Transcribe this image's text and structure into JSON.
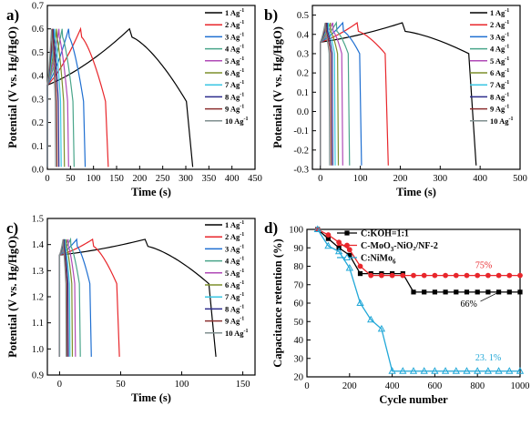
{
  "figure": {
    "panel_labels": [
      "a)",
      "b)",
      "c)",
      "d)"
    ]
  },
  "colors": {
    "rates": [
      "#000000",
      "#e8262b",
      "#1f6fd1",
      "#49a58a",
      "#b04ab7",
      "#7d8f2c",
      "#39c6e3",
      "#2c2c8c",
      "#8b2f2f",
      "#7f8f8f"
    ],
    "d": {
      "koh": "#000000",
      "moo": "#e8262b",
      "nimo": "#22a8d8"
    }
  },
  "chart_data": [
    {
      "type": "line",
      "panel": "a)",
      "xlabel": "Time (s)",
      "ylabel": "Potential (V vs. Hg/HgO)",
      "xlim": [
        0,
        450
      ],
      "ylim": [
        0,
        0.7
      ],
      "xticks": [
        "0",
        "50",
        "100",
        "150",
        "200",
        "250",
        "300",
        "350",
        "400",
        "450"
      ],
      "yticks": [
        "0.0",
        "0.1",
        "0.2",
        "0.3",
        "0.4",
        "0.5",
        "0.6",
        "0.7"
      ],
      "legend_position": "top-right",
      "series": [
        {
          "name": "1 Ag⁻¹",
          "t_charge": 178,
          "t_end": 315
        },
        {
          "name": "2 Ag⁻¹",
          "t_charge": 72,
          "t_end": 132
        },
        {
          "name": "3 Ag⁻¹",
          "t_charge": 46,
          "t_end": 82
        },
        {
          "name": "4 Ag⁻¹",
          "t_charge": 32,
          "t_end": 58
        },
        {
          "name": "5 Ag⁻¹",
          "t_charge": 25,
          "t_end": 46
        },
        {
          "name": "6 Ag⁻¹",
          "t_charge": 20,
          "t_end": 37
        },
        {
          "name": "7 Ag⁻¹",
          "t_charge": 16,
          "t_end": 30
        },
        {
          "name": "8 Ag⁻¹",
          "t_charge": 13,
          "t_end": 25
        },
        {
          "name": "9 Ag⁻¹",
          "t_charge": 11,
          "t_end": 21
        },
        {
          "name": "10 Ag⁻¹",
          "t_charge": 9,
          "t_end": 18
        }
      ],
      "curve": {
        "v_start": 0.01,
        "v_jump": 0.36,
        "v_max": 0.6,
        "v_drop": 0.29,
        "v_end": 0.01
      }
    },
    {
      "type": "line",
      "panel": "b)",
      "xlabel": "Time (s)",
      "ylabel": "Potential (V vs. Hg/HgO)",
      "xlim": [
        -20,
        500
      ],
      "ylim": [
        -0.3,
        0.55
      ],
      "xticks": [
        "0",
        "100",
        "200",
        "300",
        "400",
        "500"
      ],
      "yticks": [
        "-0.3",
        "-0.2",
        "-0.1",
        "0.0",
        "0.1",
        "0.2",
        "0.3",
        "0.4",
        "0.5"
      ],
      "legend_position": "top-right",
      "series": [
        {
          "name": "1 Ag⁻¹",
          "t_charge": 205,
          "t_end": 390
        },
        {
          "name": "2 Ag⁻¹",
          "t_charge": 92,
          "t_end": 170
        },
        {
          "name": "3 Ag⁻¹",
          "t_charge": 56,
          "t_end": 103
        },
        {
          "name": "4 Ag⁻¹",
          "t_charge": 40,
          "t_end": 73
        },
        {
          "name": "5 Ag⁻¹",
          "t_charge": 31,
          "t_end": 56
        },
        {
          "name": "6 Ag⁻¹",
          "t_charge": 25,
          "t_end": 45
        },
        {
          "name": "7 Ag⁻¹",
          "t_charge": 20,
          "t_end": 37
        },
        {
          "name": "8 Ag⁻¹",
          "t_charge": 17,
          "t_end": 31
        },
        {
          "name": "9 Ag⁻¹",
          "t_charge": 14,
          "t_end": 27
        },
        {
          "name": "10 Ag⁻¹",
          "t_charge": 12,
          "t_end": 23
        }
      ],
      "curve": {
        "v_start": -0.28,
        "v_jump": 0.36,
        "v_max": 0.46,
        "v_drop": 0.3,
        "v_end": -0.28
      }
    },
    {
      "type": "line",
      "panel": "c)",
      "xlabel": "Time (s)",
      "ylabel": "Potential (V vs. Hg/HgO)",
      "xlim": [
        -10,
        160
      ],
      "ylim": [
        0.9,
        1.5
      ],
      "xticks": [
        "0",
        "50",
        "100",
        "150"
      ],
      "yticks": [
        "0.9",
        "1.0",
        "1.1",
        "1.2",
        "1.3",
        "1.4",
        "1.5"
      ],
      "legend_position": "top-right",
      "series": [
        {
          "name": "1 Ag⁻¹",
          "t_charge": 70,
          "t_end": 128
        },
        {
          "name": "2 Ag⁻¹",
          "t_charge": 27,
          "t_end": 49
        },
        {
          "name": "3 Ag⁻¹",
          "t_charge": 14,
          "t_end": 26
        },
        {
          "name": "4 Ag⁻¹",
          "t_charge": 9,
          "t_end": 17
        },
        {
          "name": "5 Ag⁻¹",
          "t_charge": 7,
          "t_end": 13
        },
        {
          "name": "6 Ag⁻¹",
          "t_charge": 5.5,
          "t_end": 10.5
        },
        {
          "name": "7 Ag⁻¹",
          "t_charge": 4.5,
          "t_end": 8.5
        },
        {
          "name": "8 Ag⁻¹",
          "t_charge": 3.8,
          "t_end": 7.2
        },
        {
          "name": "9 Ag⁻¹",
          "t_charge": 3.2,
          "t_end": 6.2
        },
        {
          "name": "10 Ag⁻¹",
          "t_charge": 2.8,
          "t_end": 5.4
        }
      ],
      "curve": {
        "v_start": 0.97,
        "v_jump": 1.36,
        "v_max": 1.42,
        "v_drop": 1.25,
        "v_end": 0.97
      }
    },
    {
      "type": "line",
      "panel": "d)",
      "xlabel": "Cycle number",
      "ylabel": "Capacitance retention (%)",
      "xlim": [
        0,
        1000
      ],
      "ylim": [
        20,
        100
      ],
      "xticks": [
        "0",
        "200",
        "400",
        "600",
        "800",
        "1000"
      ],
      "yticks": [
        "20",
        "30",
        "40",
        "50",
        "60",
        "70",
        "80",
        "90",
        "100"
      ],
      "legend_position": "top-left",
      "series": [
        {
          "name": "C:KOH=1:1",
          "marker": "square",
          "x": [
            50,
            100,
            150,
            200,
            250,
            300,
            350,
            400,
            450,
            500,
            550,
            600,
            650,
            700,
            750,
            800,
            850,
            900,
            950,
            1000
          ],
          "y": [
            100,
            95,
            90,
            86,
            76,
            76,
            76,
            76,
            76,
            66,
            66,
            66,
            66,
            66,
            66,
            66,
            66,
            66,
            66,
            66
          ]
        },
        {
          "name": "C-MoO₃-NiO₂/NF-2",
          "marker": "circle",
          "x": [
            50,
            100,
            150,
            200,
            250,
            300,
            350,
            400,
            450,
            500,
            550,
            600,
            650,
            700,
            750,
            800,
            850,
            900,
            950,
            1000
          ],
          "y": [
            100,
            97,
            93,
            89,
            80,
            75,
            75,
            75,
            75,
            75,
            75,
            75,
            75,
            75,
            75,
            75,
            75,
            75,
            75,
            75
          ]
        },
        {
          "name": "C:NiMo₆",
          "marker": "triangle",
          "x": [
            50,
            100,
            150,
            200,
            250,
            300,
            350,
            400,
            450,
            500,
            550,
            600,
            650,
            700,
            750,
            800,
            850,
            900,
            950,
            1000
          ],
          "y": [
            100,
            91,
            88,
            79,
            60,
            51,
            46,
            23.1,
            23.1,
            23.1,
            23.1,
            23.1,
            23.1,
            23.1,
            23.1,
            23.1,
            23.1,
            23.1,
            23.1,
            23.1
          ]
        }
      ],
      "annotations": [
        {
          "text": "75%",
          "x": 790,
          "y": 79
        },
        {
          "text": "66%",
          "x": 720,
          "y": 58
        },
        {
          "text": "23. 1%",
          "x": 790,
          "y": 29
        }
      ]
    }
  ]
}
